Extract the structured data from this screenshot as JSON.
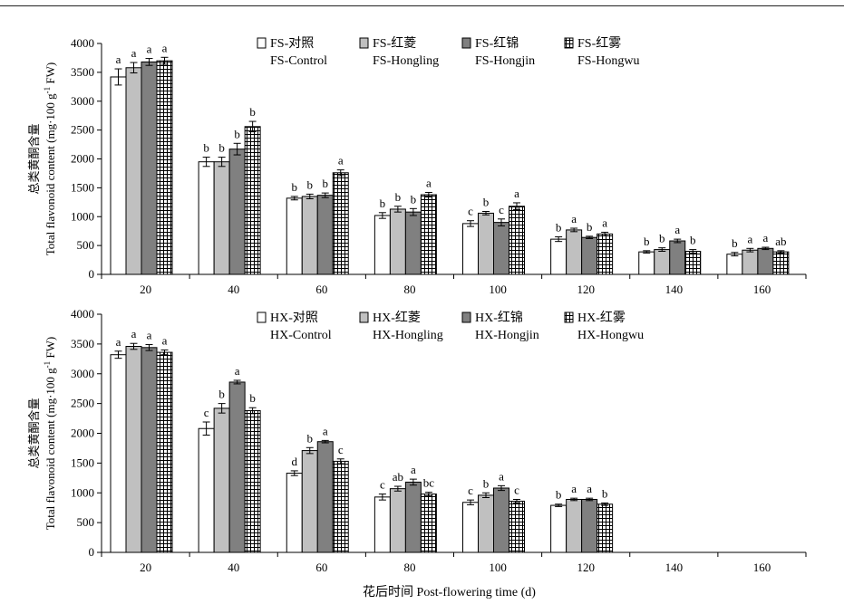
{
  "chart_data": [
    {
      "type": "bar",
      "panel": "FS",
      "categories": [
        "20",
        "40",
        "60",
        "80",
        "100",
        "120",
        "140",
        "160"
      ],
      "ylabel_cn": "总类黄酮含量",
      "ylabel_en": "Total flavonoid content (mg·100 g",
      "ylabel_sup": "-1",
      "ylabel_end": " FW)",
      "ylim": [
        0,
        4000
      ],
      "yticks": [
        "0",
        "500",
        "1000",
        "1500",
        "2000",
        "2500",
        "3000",
        "3500",
        "4000"
      ],
      "legend": [
        {
          "line1": "FS-对照",
          "line2": "FS-Control"
        },
        {
          "line1": "FS-红菱",
          "line2": "FS-Hongling"
        },
        {
          "line1": "FS-红锦",
          "line2": "FS-Hongjin"
        },
        {
          "line1": "FS-红雾",
          "line2": "FS-Hongwu"
        }
      ],
      "series": [
        {
          "name": "FS-Control",
          "values": [
            3420,
            1950,
            1320,
            1020,
            880,
            610,
            390,
            350
          ],
          "errors": [
            140,
            80,
            30,
            50,
            50,
            40,
            20,
            30
          ],
          "letters": [
            "a",
            "b",
            "b",
            "b",
            "c",
            "b",
            "b",
            "b"
          ]
        },
        {
          "name": "FS-Hongling",
          "values": [
            3580,
            1950,
            1350,
            1130,
            1060,
            770,
            430,
            420
          ],
          "errors": [
            90,
            80,
            40,
            50,
            30,
            30,
            30,
            30
          ],
          "letters": [
            "a",
            "b",
            "b",
            "b",
            "b",
            "a",
            "b",
            "a"
          ]
        },
        {
          "name": "FS-Hongjin",
          "values": [
            3680,
            2170,
            1370,
            1080,
            900,
            640,
            580,
            450
          ],
          "errors": [
            60,
            100,
            40,
            60,
            60,
            20,
            30,
            20
          ],
          "letters": [
            "a",
            "b",
            "b",
            "b",
            "c",
            "b",
            "a",
            "a"
          ]
        },
        {
          "name": "FS-Hongwu",
          "values": [
            3700,
            2560,
            1760,
            1380,
            1180,
            700,
            400,
            390
          ],
          "errors": [
            60,
            90,
            50,
            40,
            60,
            30,
            30,
            20
          ],
          "letters": [
            "a",
            "b",
            "a",
            "a",
            "a",
            "a",
            "b",
            "ab"
          ]
        }
      ]
    },
    {
      "type": "bar",
      "panel": "HX",
      "categories": [
        "20",
        "40",
        "60",
        "80",
        "100",
        "120",
        "140",
        "160"
      ],
      "xlabel": "花后时间 Post-flowering time (d)",
      "ylabel_cn": "总类黄酮含量",
      "ylabel_en": "Total flavonoid content (mg·100 g",
      "ylabel_sup": "-1",
      "ylabel_end": " FW)",
      "ylim": [
        0,
        4000
      ],
      "yticks": [
        "0",
        "500",
        "1000",
        "1500",
        "2000",
        "2500",
        "3000",
        "3500",
        "4000"
      ],
      "legend": [
        {
          "line1": "HX-对照",
          "line2": "HX-Control"
        },
        {
          "line1": "HX-红菱",
          "line2": "HX-Hongling"
        },
        {
          "line1": "HX-红锦",
          "line2": "HX-Hongjin"
        },
        {
          "line1": "HX-红雾",
          "line2": "HX-Hongwu"
        }
      ],
      "series": [
        {
          "name": "HX-Control",
          "values": [
            3320,
            2080,
            1330,
            930,
            840,
            790,
            null,
            null
          ],
          "errors": [
            60,
            110,
            40,
            50,
            40,
            20,
            null,
            null
          ],
          "letters": [
            "a",
            "c",
            "d",
            "c",
            "c",
            "b",
            null,
            null
          ]
        },
        {
          "name": "HX-Hongling",
          "values": [
            3460,
            2420,
            1710,
            1070,
            960,
            890,
            null,
            null
          ],
          "errors": [
            50,
            80,
            50,
            40,
            40,
            20,
            null,
            null
          ],
          "letters": [
            "a",
            "b",
            "b",
            "ab",
            "b",
            "a",
            null,
            null
          ]
        },
        {
          "name": "HX-Hongjin",
          "values": [
            3440,
            2860,
            1860,
            1180,
            1080,
            890,
            null,
            null
          ],
          "errors": [
            50,
            30,
            20,
            50,
            40,
            20,
            null,
            null
          ],
          "letters": [
            "a",
            "a",
            "a",
            "a",
            "a",
            "a",
            null,
            null
          ]
        },
        {
          "name": "HX-Hongwu",
          "values": [
            3360,
            2380,
            1530,
            980,
            860,
            810,
            null,
            null
          ],
          "errors": [
            40,
            50,
            40,
            30,
            30,
            20,
            null,
            null
          ],
          "letters": [
            "a",
            "b",
            "c",
            "bc",
            "c",
            "b",
            null,
            null
          ]
        }
      ]
    }
  ],
  "colors": {
    "control": "#ffffff",
    "hongling": "#c0c0c0",
    "hongjin": "#808080",
    "hongwu_pattern": "#000000"
  }
}
